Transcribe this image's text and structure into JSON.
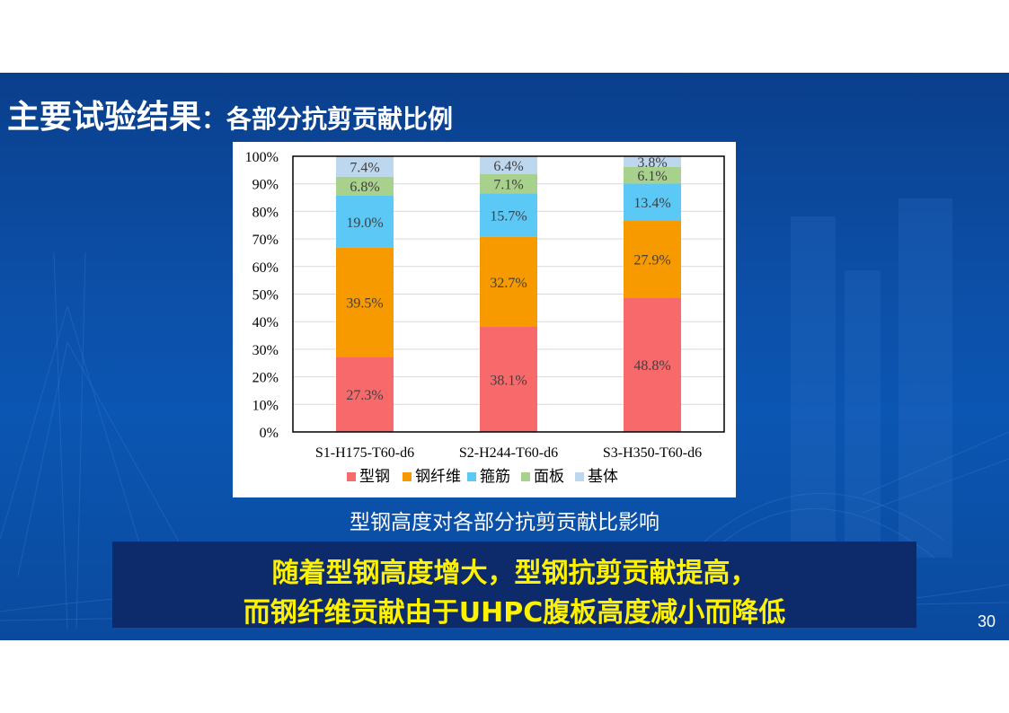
{
  "slide": {
    "title_main": "主要试验结果",
    "title_sep": "：",
    "title_sub": "各部分抗剪贡献比例",
    "caption": "型钢高度对各部分抗剪贡献比影响",
    "conclusion_line1": "随着型钢高度增大，型钢抗剪贡献提高，",
    "conclusion_line2": "而钢纤维贡献由于UHPC腹板高度减小而降低",
    "page_number": "30"
  },
  "colors": {
    "background": "#0b4ea6",
    "banner_bg": "#0d2a6b",
    "banner_text": "#fff200"
  },
  "chart_data": {
    "type": "bar",
    "stacked": true,
    "categories": [
      "S1-H175-T60-d6",
      "S2-H244-T60-d6",
      "S3-H350-T60-d6"
    ],
    "series": [
      {
        "name": "型钢",
        "color": "#f8696b",
        "values": [
          27.3,
          38.1,
          48.8
        ],
        "labels": [
          "27.3%",
          "38.1%",
          "48.8%"
        ]
      },
      {
        "name": "钢纤维",
        "color": "#f79a00",
        "values": [
          39.5,
          32.7,
          27.9
        ],
        "labels": [
          "39.5%",
          "32.7%",
          "27.9%"
        ]
      },
      {
        "name": "箍筋",
        "color": "#5bc8f5",
        "values": [
          19.0,
          15.7,
          13.4
        ],
        "labels": [
          "19.0%",
          "15.7%",
          "13.4%"
        ]
      },
      {
        "name": "面板",
        "color": "#a9d18e",
        "values": [
          6.8,
          7.1,
          6.1
        ],
        "labels": [
          "6.8%",
          "7.1%",
          "6.1%"
        ]
      },
      {
        "name": "基体",
        "color": "#bdd7ee",
        "values": [
          7.4,
          6.4,
          3.8
        ],
        "labels": [
          "7.4%",
          "6.4%",
          "3.8%"
        ]
      }
    ],
    "yticks": [
      "0%",
      "10%",
      "20%",
      "30%",
      "40%",
      "50%",
      "60%",
      "70%",
      "80%",
      "90%",
      "100%"
    ],
    "ylim": [
      0,
      100
    ],
    "grid": true,
    "legend_position": "bottom"
  }
}
